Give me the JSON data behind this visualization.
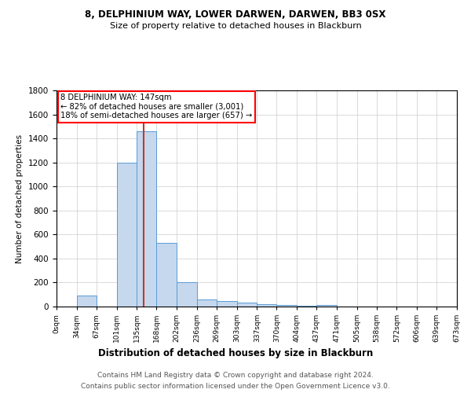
{
  "title1": "8, DELPHINIUM WAY, LOWER DARWEN, DARWEN, BB3 0SX",
  "title2": "Size of property relative to detached houses in Blackburn",
  "xlabel": "Distribution of detached houses by size in Blackburn",
  "ylabel": "Number of detached properties",
  "annotation_line1": "8 DELPHINIUM WAY: 147sqm",
  "annotation_line2": "← 82% of detached houses are smaller (3,001)",
  "annotation_line3": "18% of semi-detached houses are larger (657) →",
  "bar_edges": [
    0,
    34,
    67,
    101,
    135,
    168,
    202,
    236,
    269,
    303,
    337,
    370,
    404,
    437,
    471,
    505,
    538,
    572,
    606,
    639,
    673
  ],
  "bar_heights": [
    0,
    90,
    0,
    1200,
    1460,
    530,
    200,
    60,
    45,
    30,
    20,
    10,
    5,
    10,
    0,
    0,
    0,
    0,
    0,
    0
  ],
  "bar_color": "#c5d8ee",
  "bar_edge_color": "#5b9bd5",
  "vline_color": "#c0392b",
  "vline_x": 147,
  "ylim": [
    0,
    1800
  ],
  "yticks": [
    0,
    200,
    400,
    600,
    800,
    1000,
    1200,
    1400,
    1600,
    1800
  ],
  "footnote1": "Contains HM Land Registry data © Crown copyright and database right 2024.",
  "footnote2": "Contains public sector information licensed under the Open Government Licence v3.0.",
  "bg_color": "#ffffff",
  "grid_color": "#cccccc"
}
